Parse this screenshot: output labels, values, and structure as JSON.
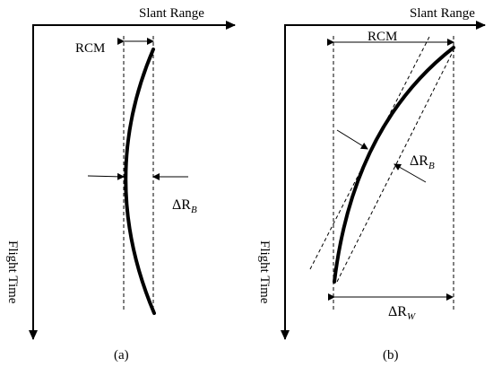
{
  "panel_a": {
    "x_axis_label": "Slant Range",
    "y_axis_label": "Flight Time",
    "rcm_label": "RCM",
    "delta_rb": {
      "base": "ΔR",
      "sub": "B"
    },
    "caption": "(a)"
  },
  "panel_b": {
    "x_axis_label": "Slant Range",
    "y_axis_label": "Flight Time",
    "rcm_label": "RCM",
    "delta_rb": {
      "base": "ΔR",
      "sub": "B"
    },
    "delta_rw": {
      "base": "ΔR",
      "sub": "W"
    },
    "caption": "(b)"
  }
}
